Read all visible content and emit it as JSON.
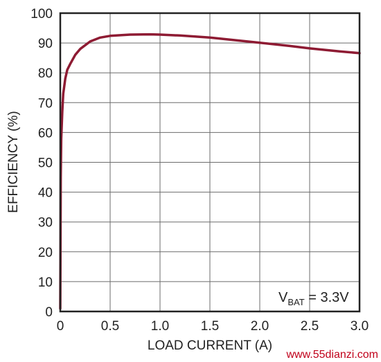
{
  "chart_data": {
    "type": "line",
    "xlabel": "LOAD CURRENT (A)",
    "ylabel": "EFFICIENCY (%)",
    "xlim": [
      0,
      3.0
    ],
    "ylim": [
      0,
      100
    ],
    "x_ticks": [
      0,
      0.5,
      1.0,
      1.5,
      2.0,
      2.5,
      3.0
    ],
    "x_tick_labels": [
      "0",
      "0.5",
      "1.0",
      "1.5",
      "2.0",
      "2.5",
      "3.0"
    ],
    "y_ticks": [
      0,
      10,
      20,
      30,
      40,
      50,
      60,
      70,
      80,
      90,
      100
    ],
    "y_tick_labels": [
      "0",
      "10",
      "20",
      "30",
      "40",
      "50",
      "60",
      "70",
      "80",
      "90",
      "100"
    ],
    "grid": true,
    "annotation": {
      "main": "V",
      "sub": "BAT",
      "rest": " = 3.3V"
    },
    "line_color": "#8e1b33",
    "series": [
      {
        "x": [
          0,
          0.005,
          0.01,
          0.02,
          0.03,
          0.05,
          0.07,
          0.1,
          0.15,
          0.2,
          0.3,
          0.4,
          0.5,
          0.7,
          0.9,
          1.0,
          1.2,
          1.5,
          1.8,
          2.0,
          2.3,
          2.5,
          2.8,
          3.0
        ],
        "y": [
          1,
          45,
          58,
          67,
          73,
          78,
          81,
          83,
          86,
          88,
          90.5,
          91.8,
          92.4,
          92.8,
          92.9,
          92.8,
          92.5,
          91.8,
          90.8,
          90.1,
          89.0,
          88.2,
          87.2,
          86.6
        ]
      }
    ]
  },
  "watermark": "www.55dianzi.com"
}
